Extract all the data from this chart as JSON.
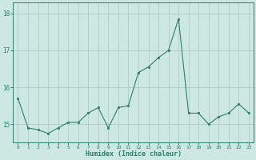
{
  "x": [
    0,
    1,
    2,
    3,
    4,
    5,
    6,
    7,
    8,
    9,
    10,
    11,
    12,
    13,
    14,
    15,
    16,
    17,
    18,
    19,
    20,
    21,
    22,
    23
  ],
  "y": [
    15.7,
    14.9,
    14.85,
    14.75,
    14.9,
    15.05,
    15.05,
    15.3,
    15.45,
    14.9,
    15.45,
    15.5,
    16.4,
    16.55,
    16.8,
    17.0,
    17.85,
    15.3,
    15.3,
    15.0,
    15.2,
    15.3,
    15.55,
    15.3
  ],
  "line_color": "#2e7d6e",
  "marker_color": "#2e7d6e",
  "bg_color": "#cde8e2",
  "grid_color": "#aeccc6",
  "axis_color": "#2e7d6e",
  "xlabel": "Humidex (Indice chaleur)",
  "ylim_min": 14.5,
  "ylim_max": 18.3,
  "yticks": [
    15,
    16,
    17,
    18
  ]
}
